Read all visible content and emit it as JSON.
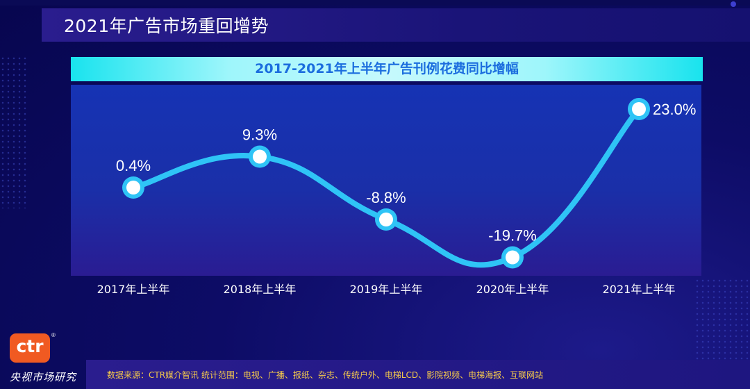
{
  "page": {
    "title": "2021年广告市场重回增势"
  },
  "chart_data": {
    "type": "line",
    "title": "2017-2021年上半年广告刊例花费同比增幅",
    "categories": [
      "2017年上半年",
      "2018年上半年",
      "2019年上半年",
      "2020年上半年",
      "2021年上半年"
    ],
    "series": [
      {
        "values": [
          0.4,
          9.3,
          -8.8,
          -19.7,
          23.0
        ]
      }
    ],
    "data_labels": [
      "0.4%",
      "9.3%",
      "-8.8%",
      "-19.7%",
      "23.0%"
    ],
    "unit": "%",
    "ylim": [
      -25,
      30
    ],
    "grid": false,
    "colors": {
      "line": "#2fc4f6",
      "marker_fill": "#ffffff",
      "label": "#ffffff"
    }
  },
  "footer": {
    "source_note": "数据来源：CTR媒介智讯  统计范围：电视、广播、报纸、杂志、传统户外、电梯LCD、影院视频、电梯海报、互联网站"
  },
  "brand": {
    "logo_text": "ctr",
    "logo_reg": "®",
    "name": "央视市场研究"
  }
}
